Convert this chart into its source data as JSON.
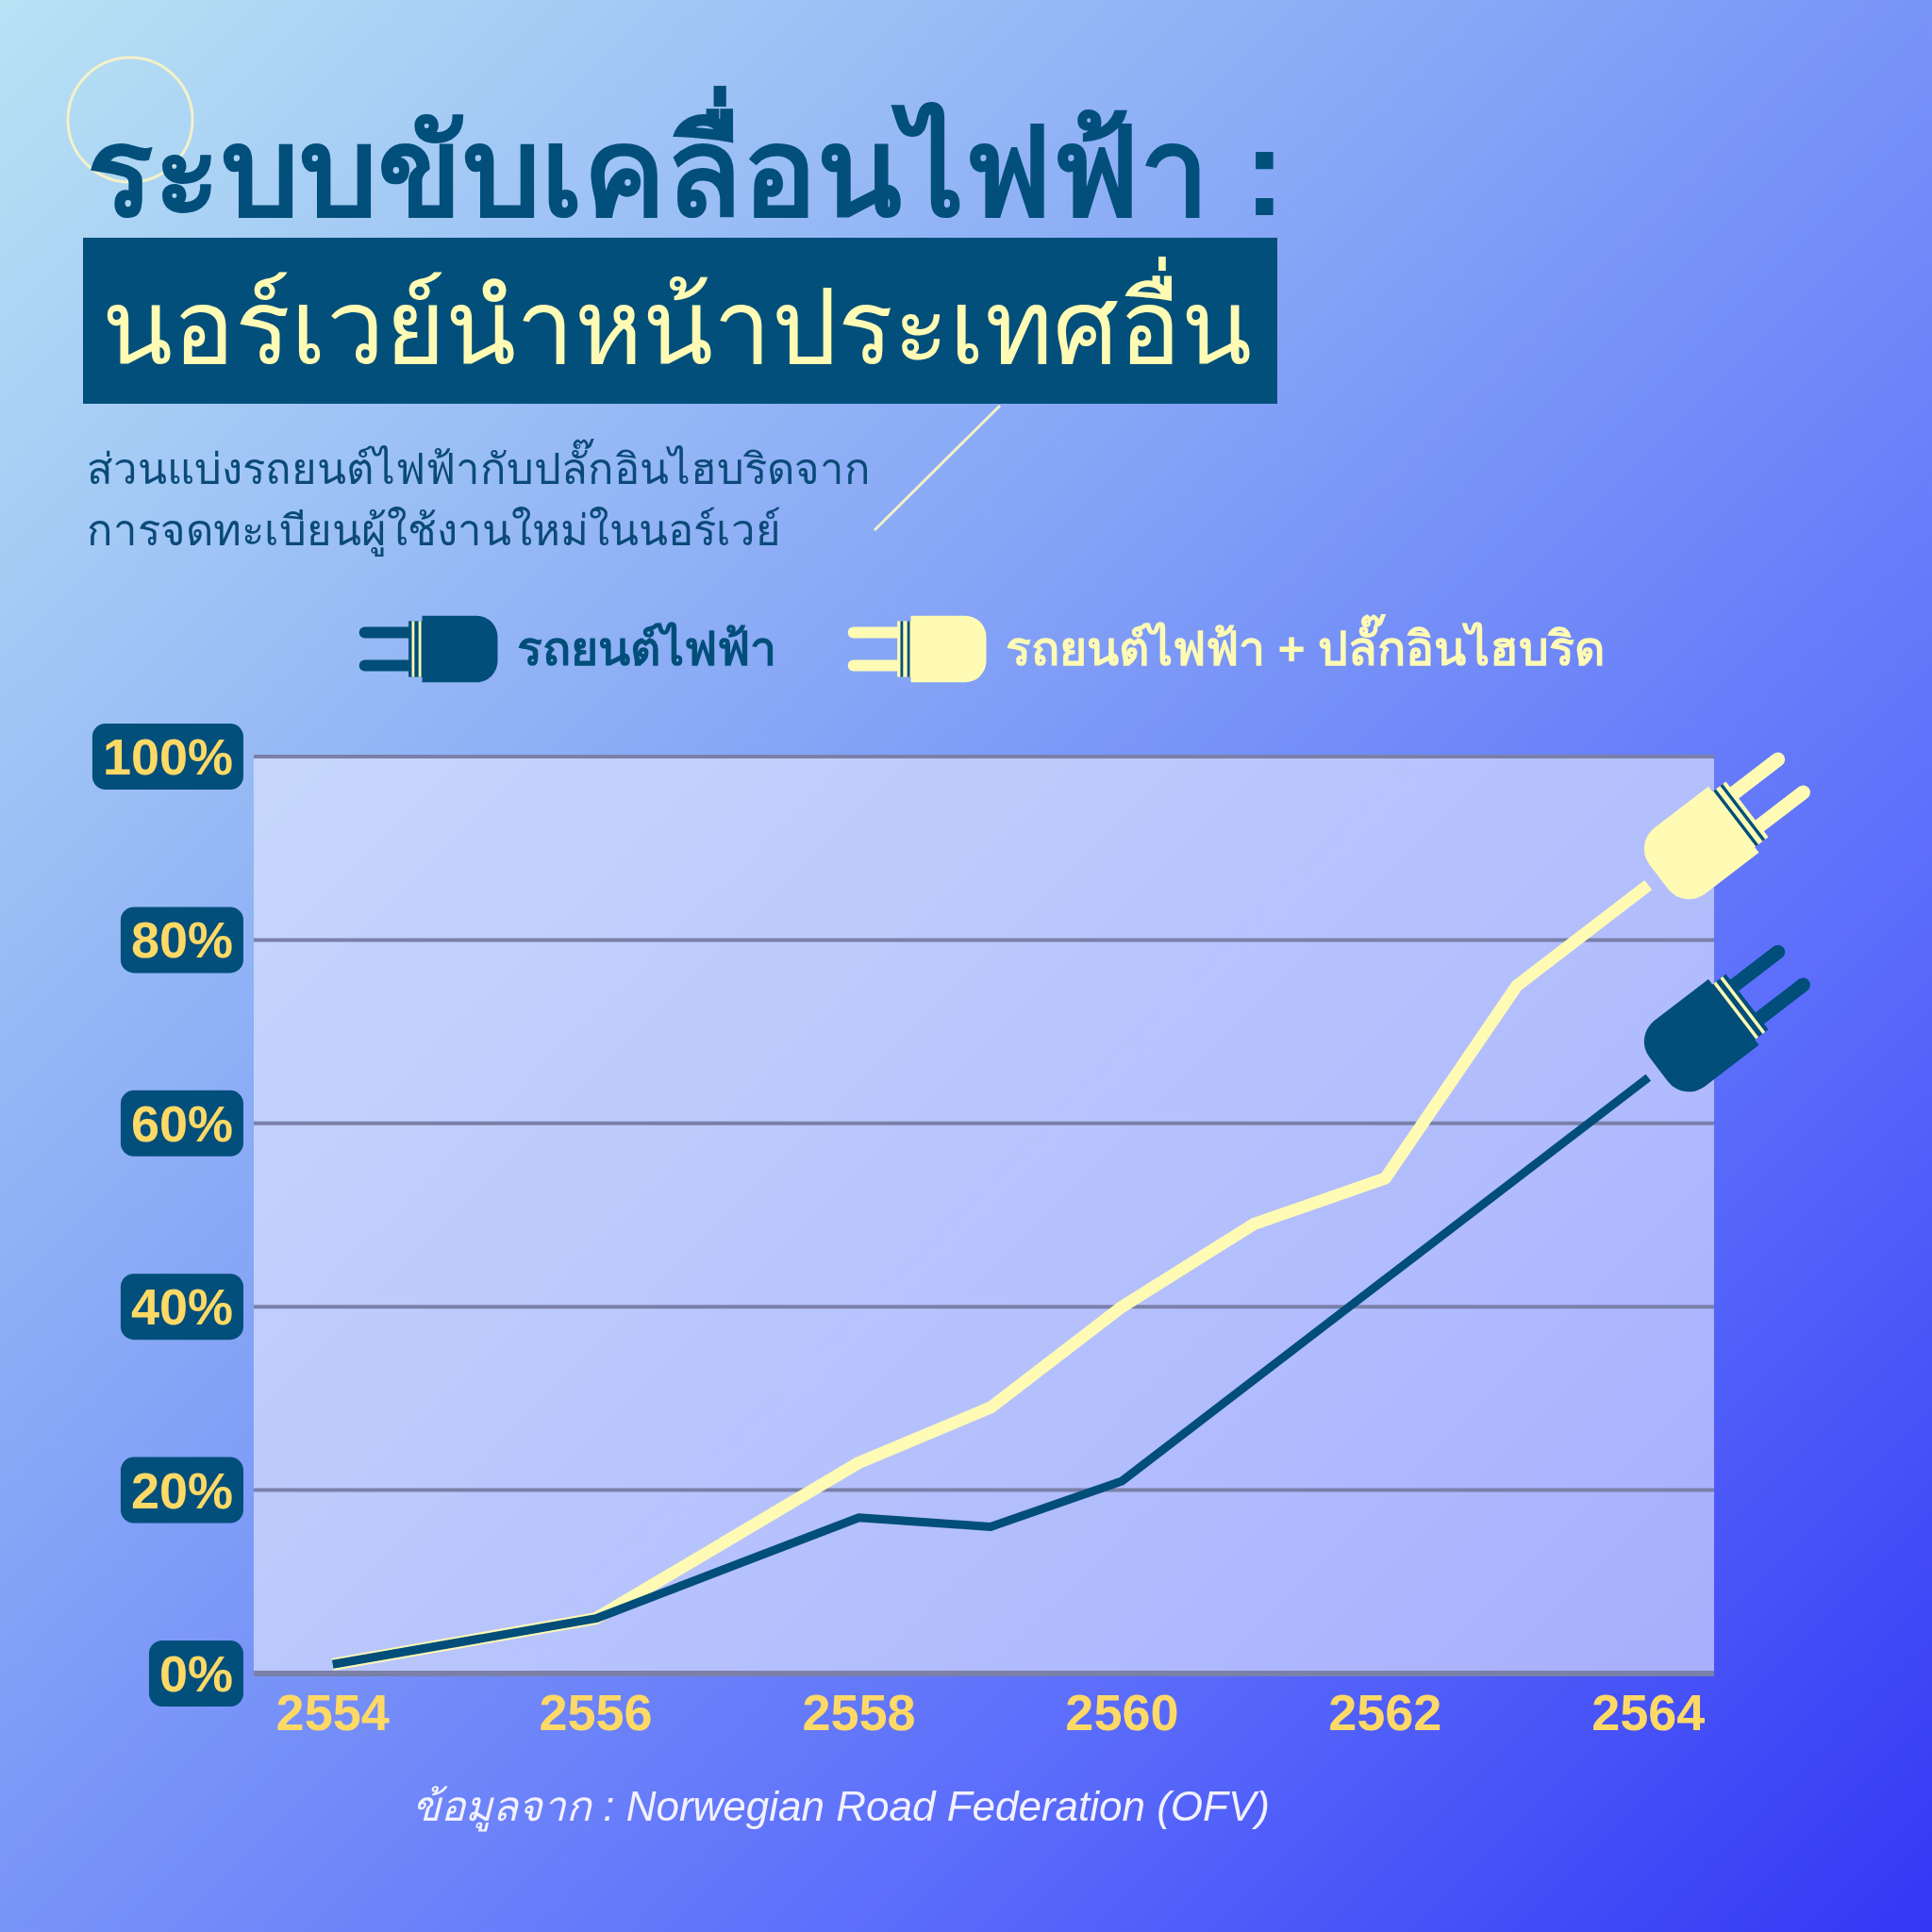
{
  "chart_data": {
    "type": "line",
    "title": "ระบบขับเคลื่อนไฟฟ้า :\nนอร์เวย์นำหน้าประเทศอื่น",
    "subtitle": "ส่วนแบ่งรถยนต์ไฟฟ้ากับปลั๊กอินไฮบริดจาก\nการจดทะเบียนผู้ใช้งานใหม่ในนอร์เวย์",
    "series": [
      {
        "name": "รถยนต์ไฟฟ้า",
        "color": "#004e79",
        "x": [
          2554,
          2556,
          2558,
          2559,
          2560,
          2562,
          2564
        ],
        "values": [
          1,
          6,
          17,
          16,
          21,
          43,
          65
        ]
      },
      {
        "name": "รถยนต์ไฟฟ้า + ปลั๊กอินไฮบริด",
        "color": "#fffbb4",
        "x": [
          2554,
          2556,
          2558,
          2559,
          2560,
          2561,
          2562,
          2563,
          2564
        ],
        "values": [
          1,
          6,
          23,
          29,
          40,
          49,
          54,
          75,
          86
        ]
      }
    ],
    "xlim": [
      2553.4,
      2564.5
    ],
    "xticks": [
      2554,
      2556,
      2558,
      2560,
      2562,
      2564
    ],
    "ylim": [
      0,
      100
    ],
    "yticks": [
      {
        "value": 0,
        "label": "0%"
      },
      {
        "value": 20,
        "label": "20%"
      },
      {
        "value": 40,
        "label": "40%"
      },
      {
        "value": 60,
        "label": "60%"
      },
      {
        "value": 80,
        "label": "80%"
      },
      {
        "value": 100,
        "label": "100%"
      }
    ],
    "grid": "y",
    "legend": "top",
    "annotations": [
      "ข้อมูลจาก : Norwegian Road Federation (OFV)"
    ]
  }
}
